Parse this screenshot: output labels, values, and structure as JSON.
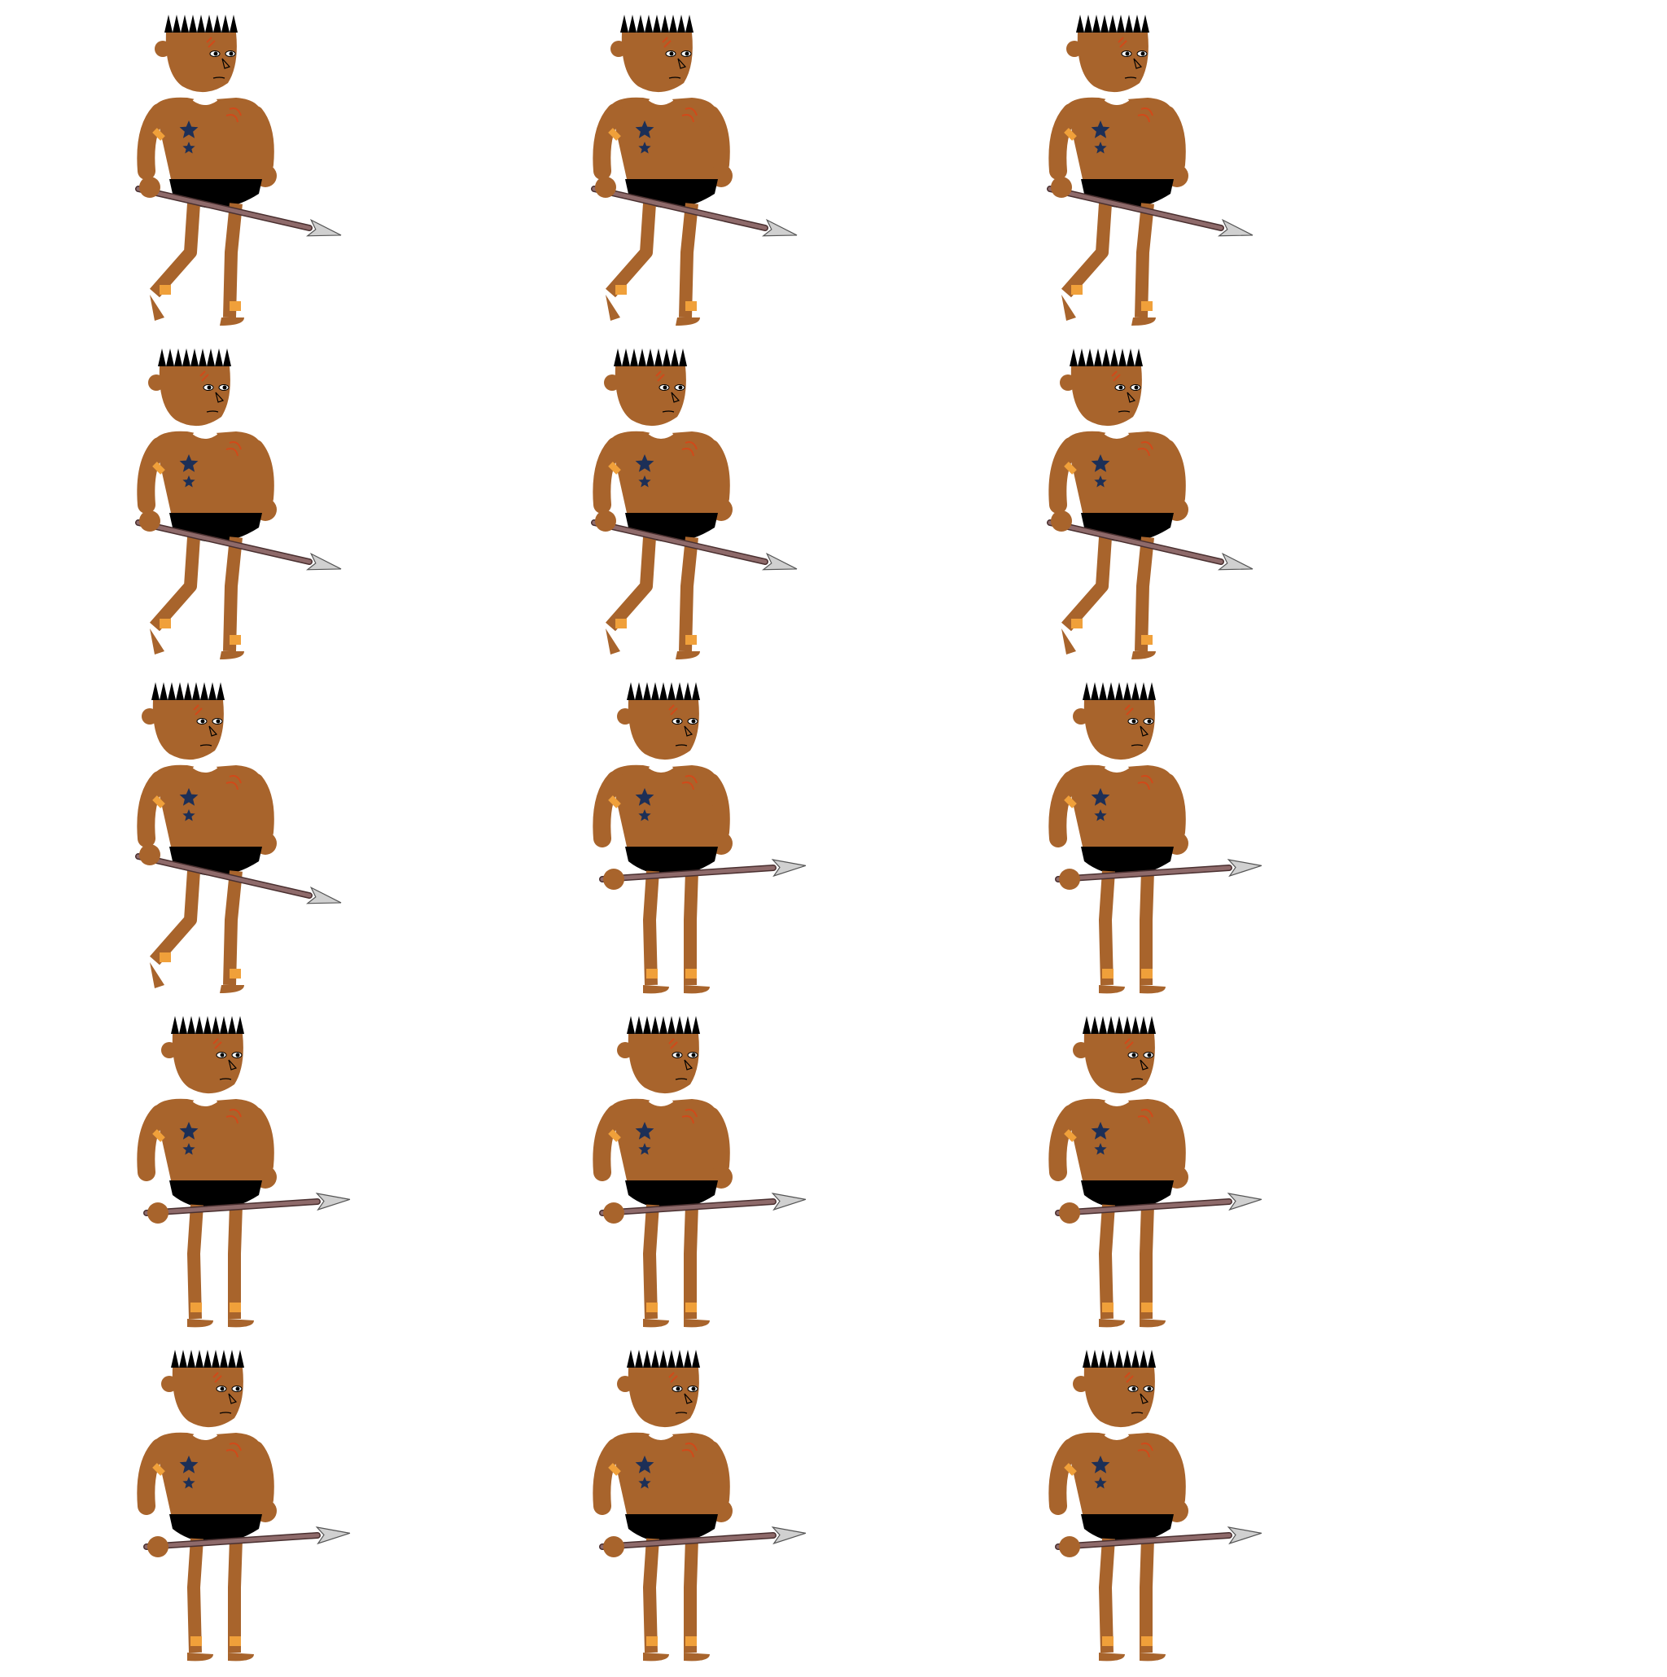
{
  "sprite_sheet": {
    "columns": 3,
    "rows": 5,
    "frames": [
      {
        "pose": "walk",
        "phase": 1
      },
      {
        "pose": "walk",
        "phase": 1
      },
      {
        "pose": "walk",
        "phase": 1
      },
      {
        "pose": "walk",
        "phase": 2
      },
      {
        "pose": "walk",
        "phase": 2
      },
      {
        "pose": "walk",
        "phase": 2
      },
      {
        "pose": "walk",
        "phase": 3
      },
      {
        "pose": "idle",
        "phase": 0
      },
      {
        "pose": "idle",
        "phase": 0
      },
      {
        "pose": "idle",
        "phase": 0
      },
      {
        "pose": "idle",
        "phase": 0
      },
      {
        "pose": "idle",
        "phase": 0
      },
      {
        "pose": "idle",
        "phase": 0
      },
      {
        "pose": "idle",
        "phase": 0
      },
      {
        "pose": "idle",
        "phase": 0
      }
    ]
  },
  "character": {
    "name_icon": "spear-warrior-sprite",
    "colors": {
      "skin": "#a8642c",
      "skin_outline": "#8a4e1e",
      "hair": "#000000",
      "loincloth": "#000000",
      "star": "#1c2f57",
      "armband": "#f0a03a",
      "anklet": "#f0a03a",
      "scar": "#d04a1a",
      "spear_shaft": "#8e6a6a",
      "spear_head": "#d0d0d0",
      "collar": "#ffffff"
    }
  }
}
